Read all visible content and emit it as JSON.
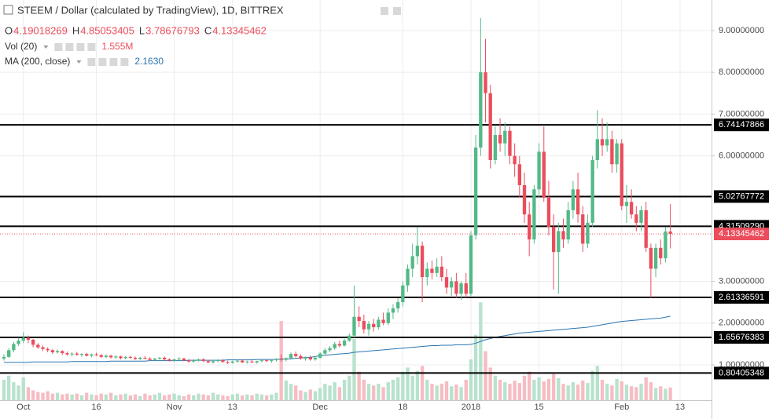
{
  "chart_data": {
    "type": "candlestick",
    "title": "STEEM / Dollar (calculated by TradingView), 1D, BITTREX",
    "ohlc_keys": [
      "O",
      "H",
      "L",
      "C"
    ],
    "indicators": [
      {
        "name": "Vol (20)",
        "value_label": "1.555M"
      },
      {
        "name": "MA (200, close)",
        "value_label": "2.1630"
      }
    ],
    "up_color": "#53b987",
    "down_color": "#eb4d5c",
    "ma_color": "#2a74b0",
    "volume_up_color": "#b7e2cd",
    "volume_down_color": "#f7bcc2",
    "ylim": [
      0.155,
      9.73
    ],
    "volume_lim": [
      0,
      12.5
    ],
    "grid": true,
    "yticks": [
      {
        "value": 1,
        "label": "1.00000000"
      },
      {
        "value": 2,
        "label": "2.00000000"
      },
      {
        "value": 3,
        "label": "3.00000000"
      },
      {
        "value": 6,
        "label": "6.00000000"
      },
      {
        "value": 7,
        "label": "7.00000000"
      },
      {
        "value": 8,
        "label": "8.00000000"
      },
      {
        "value": 9,
        "label": "9.00000000"
      }
    ],
    "hlines": [
      6.74147866,
      5.02767772,
      {
        "value": 4.3150929,
        "label": "4.31509290"
      },
      2.61336591,
      1.65676383,
      0.80405348
    ],
    "categories": [
      null,
      null,
      null,
      null,
      "Oct",
      null,
      null,
      null,
      null,
      null,
      null,
      null,
      null,
      null,
      null,
      null,
      null,
      null,
      null,
      "16",
      null,
      null,
      null,
      null,
      null,
      null,
      null,
      null,
      null,
      null,
      null,
      null,
      null,
      null,
      null,
      "Nov",
      null,
      null,
      null,
      null,
      null,
      null,
      null,
      null,
      null,
      null,
      null,
      "13",
      null,
      null,
      null,
      null,
      null,
      null,
      null,
      null,
      null,
      null,
      null,
      null,
      null,
      null,
      null,
      null,
      null,
      "Dec",
      null,
      null,
      null,
      null,
      null,
      null,
      null,
      null,
      null,
      null,
      null,
      null,
      null,
      null,
      null,
      null,
      "18",
      null,
      null,
      null,
      null,
      null,
      null,
      null,
      null,
      null,
      null,
      null,
      null,
      null,
      "2018",
      null,
      null,
      null,
      null,
      null,
      null,
      null,
      null,
      null,
      null,
      null,
      null,
      null,
      "15",
      null,
      null,
      null,
      null,
      null,
      null,
      null,
      null,
      null,
      null,
      null,
      null,
      null,
      null,
      null,
      null,
      "Feb",
      null,
      null,
      null,
      null,
      null,
      null,
      null,
      null,
      null,
      null,
      null,
      "13"
    ],
    "ohlc": [
      [
        1.15,
        1.25,
        1.1,
        1.19
      ],
      [
        1.19,
        1.4,
        1.17,
        1.35
      ],
      [
        1.35,
        1.55,
        1.3,
        1.5
      ],
      [
        1.5,
        1.65,
        1.45,
        1.58
      ],
      [
        1.58,
        1.78,
        1.52,
        1.65
      ],
      [
        1.65,
        1.7,
        1.52,
        1.6
      ],
      [
        1.6,
        1.62,
        1.42,
        1.48
      ],
      [
        1.48,
        1.52,
        1.38,
        1.42
      ],
      [
        1.42,
        1.46,
        1.33,
        1.38
      ],
      [
        1.38,
        1.42,
        1.3,
        1.35
      ],
      [
        1.35,
        1.38,
        1.26,
        1.3
      ],
      [
        1.3,
        1.37,
        1.27,
        1.33
      ],
      [
        1.33,
        1.35,
        1.24,
        1.28
      ],
      [
        1.28,
        1.32,
        1.22,
        1.25
      ],
      [
        1.25,
        1.3,
        1.2,
        1.27
      ],
      [
        1.27,
        1.31,
        1.22,
        1.24
      ],
      [
        1.24,
        1.28,
        1.19,
        1.26
      ],
      [
        1.26,
        1.29,
        1.2,
        1.22
      ],
      [
        1.22,
        1.27,
        1.18,
        1.25
      ],
      [
        1.25,
        1.29,
        1.21,
        1.23
      ],
      [
        1.23,
        1.26,
        1.17,
        1.19
      ],
      [
        1.19,
        1.25,
        1.16,
        1.22
      ],
      [
        1.22,
        1.24,
        1.15,
        1.18
      ],
      [
        1.18,
        1.23,
        1.14,
        1.2
      ],
      [
        1.2,
        1.22,
        1.13,
        1.16
      ],
      [
        1.16,
        1.21,
        1.13,
        1.19
      ],
      [
        1.19,
        1.22,
        1.14,
        1.17
      ],
      [
        1.17,
        1.2,
        1.12,
        1.14
      ],
      [
        1.14,
        1.19,
        1.11,
        1.17
      ],
      [
        1.17,
        1.21,
        1.13,
        1.15
      ],
      [
        1.15,
        1.18,
        1.1,
        1.12
      ],
      [
        1.12,
        1.17,
        1.09,
        1.15
      ],
      [
        1.15,
        1.19,
        1.12,
        1.17
      ],
      [
        1.17,
        1.2,
        1.11,
        1.13
      ],
      [
        1.13,
        1.16,
        1.08,
        1.1
      ],
      [
        1.1,
        1.15,
        1.07,
        1.13
      ],
      [
        1.13,
        1.18,
        1.1,
        1.15
      ],
      [
        1.15,
        1.17,
        1.09,
        1.11
      ],
      [
        1.11,
        1.14,
        1.05,
        1.08
      ],
      [
        1.08,
        1.13,
        1.05,
        1.11
      ],
      [
        1.11,
        1.15,
        1.08,
        1.13
      ],
      [
        1.13,
        1.16,
        1.07,
        1.09
      ],
      [
        1.09,
        1.12,
        1.04,
        1.06
      ],
      [
        1.06,
        1.11,
        1.03,
        1.09
      ],
      [
        1.09,
        1.13,
        1.06,
        1.11
      ],
      [
        1.11,
        1.14,
        1.05,
        1.07
      ],
      [
        1.07,
        1.1,
        1.02,
        1.05
      ],
      [
        1.05,
        1.1,
        1.03,
        1.08
      ],
      [
        1.08,
        1.12,
        1.05,
        1.1
      ],
      [
        1.1,
        1.13,
        1.04,
        1.06
      ],
      [
        1.06,
        1.1,
        1.03,
        1.08
      ],
      [
        1.08,
        1.11,
        1.04,
        1.06
      ],
      [
        1.06,
        1.1,
        1.03,
        1.09
      ],
      [
        1.09,
        1.13,
        1.06,
        1.11
      ],
      [
        1.11,
        1.14,
        1.07,
        1.09
      ],
      [
        1.09,
        1.13,
        1.05,
        1.11
      ],
      [
        1.11,
        1.16,
        1.08,
        1.14
      ],
      [
        1.14,
        1.25,
        1.08,
        1.12
      ],
      [
        1.12,
        1.18,
        1.08,
        1.16
      ],
      [
        1.16,
        1.3,
        1.14,
        1.26
      ],
      [
        1.26,
        1.32,
        1.18,
        1.21
      ],
      [
        1.21,
        1.25,
        1.12,
        1.15
      ],
      [
        1.15,
        1.2,
        1.1,
        1.18
      ],
      [
        1.18,
        1.22,
        1.1,
        1.13
      ],
      [
        1.13,
        1.2,
        1.1,
        1.17
      ],
      [
        1.17,
        1.3,
        1.15,
        1.27
      ],
      [
        1.27,
        1.4,
        1.24,
        1.35
      ],
      [
        1.35,
        1.45,
        1.3,
        1.4
      ],
      [
        1.4,
        1.55,
        1.36,
        1.5
      ],
      [
        1.5,
        1.58,
        1.42,
        1.46
      ],
      [
        1.46,
        1.62,
        1.44,
        1.58
      ],
      [
        1.58,
        1.75,
        1.55,
        1.7
      ],
      [
        1.7,
        2.9,
        1.65,
        2.15
      ],
      [
        2.15,
        2.4,
        1.9,
        2.05
      ],
      [
        2.05,
        2.2,
        1.75,
        1.85
      ],
      [
        1.85,
        2.05,
        1.7,
        1.98
      ],
      [
        1.98,
        2.1,
        1.8,
        1.9
      ],
      [
        1.9,
        2.15,
        1.85,
        2.08
      ],
      [
        2.08,
        2.25,
        1.95,
        2.0
      ],
      [
        2.0,
        2.35,
        1.95,
        2.25
      ],
      [
        2.25,
        2.45,
        2.1,
        2.35
      ],
      [
        2.35,
        2.6,
        2.25,
        2.5
      ],
      [
        2.5,
        3.0,
        2.4,
        2.9
      ],
      [
        2.9,
        3.4,
        2.75,
        3.3
      ],
      [
        3.3,
        3.9,
        3.1,
        3.6
      ],
      [
        3.6,
        4.3,
        3.4,
        3.85
      ],
      [
        3.85,
        3.95,
        2.5,
        3.1
      ],
      [
        3.1,
        3.45,
        2.9,
        3.3
      ],
      [
        3.3,
        3.5,
        3.05,
        3.2
      ],
      [
        3.2,
        3.55,
        3.1,
        3.35
      ],
      [
        3.35,
        3.6,
        3.0,
        3.1
      ],
      [
        3.1,
        3.3,
        2.7,
        2.85
      ],
      [
        2.85,
        3.1,
        2.65,
        3.0
      ],
      [
        3.0,
        3.2,
        2.6,
        2.7
      ],
      [
        2.7,
        3.0,
        2.55,
        2.95
      ],
      [
        2.95,
        3.2,
        2.6,
        2.7
      ],
      [
        2.7,
        4.2,
        2.65,
        4.1
      ],
      [
        4.1,
        6.5,
        4.0,
        6.2
      ],
      [
        6.2,
        9.3,
        6.0,
        8.0
      ],
      [
        8.0,
        8.8,
        6.8,
        7.5
      ],
      [
        7.5,
        7.7,
        5.7,
        5.9
      ],
      [
        5.9,
        6.7,
        5.8,
        6.5
      ],
      [
        6.5,
        6.9,
        6.1,
        6.3
      ],
      [
        6.3,
        6.8,
        6.0,
        6.6
      ],
      [
        6.6,
        6.7,
        5.8,
        6.0
      ],
      [
        6.0,
        6.3,
        5.5,
        5.8
      ],
      [
        5.8,
        6.0,
        5.0,
        5.3
      ],
      [
        5.3,
        5.6,
        4.4,
        4.6
      ],
      [
        4.6,
        4.9,
        3.6,
        4.0
      ],
      [
        4.0,
        5.3,
        3.9,
        5.2
      ],
      [
        5.2,
        6.3,
        5.0,
        6.1
      ],
      [
        6.1,
        6.7,
        4.9,
        5.0
      ],
      [
        5.0,
        5.4,
        4.1,
        4.3
      ],
      [
        4.3,
        4.6,
        2.8,
        3.7
      ],
      [
        3.7,
        4.4,
        2.7,
        4.2
      ],
      [
        4.2,
        4.5,
        3.8,
        4.0
      ],
      [
        4.0,
        4.9,
        3.9,
        4.7
      ],
      [
        4.7,
        5.4,
        4.5,
        5.2
      ],
      [
        5.2,
        5.6,
        4.4,
        4.6
      ],
      [
        4.6,
        4.8,
        3.7,
        3.9
      ],
      [
        3.9,
        4.6,
        3.8,
        4.4
      ],
      [
        4.4,
        6.0,
        4.3,
        5.9
      ],
      [
        5.9,
        7.1,
        5.7,
        6.4
      ],
      [
        6.4,
        6.9,
        6.0,
        6.25
      ],
      [
        6.25,
        6.8,
        6.1,
        6.4
      ],
      [
        6.4,
        6.6,
        5.6,
        5.8
      ],
      [
        5.8,
        6.4,
        5.6,
        6.3
      ],
      [
        6.3,
        6.4,
        4.7,
        4.8
      ],
      [
        4.8,
        5.3,
        4.4,
        4.9
      ],
      [
        4.9,
        5.2,
        4.5,
        4.6
      ],
      [
        4.6,
        4.8,
        4.2,
        4.4
      ],
      [
        4.4,
        4.8,
        4.2,
        4.7
      ],
      [
        4.7,
        4.9,
        3.7,
        3.8
      ],
      [
        3.8,
        3.9,
        2.6,
        3.3
      ],
      [
        3.3,
        3.9,
        3.1,
        3.8
      ],
      [
        3.8,
        4.0,
        3.4,
        3.55
      ],
      [
        3.55,
        4.3,
        3.45,
        4.19
      ],
      [
        4.19018269,
        4.85053405,
        3.78676793,
        4.13345462
      ],
      null,
      null
    ],
    "volume": [
      2.5,
      3.0,
      2.2,
      1.8,
      2.8,
      1.6,
      1.2,
      1.0,
      0.9,
      1.1,
      0.8,
      0.9,
      0.7,
      0.8,
      0.7,
      0.8,
      0.6,
      0.9,
      0.7,
      0.6,
      0.8,
      0.7,
      0.9,
      0.6,
      0.7,
      0.8,
      0.6,
      0.7,
      0.5,
      0.8,
      0.6,
      0.7,
      0.9,
      0.6,
      0.7,
      0.8,
      0.6,
      0.5,
      0.7,
      0.6,
      0.8,
      0.7,
      0.6,
      0.9,
      0.7,
      0.6,
      0.5,
      0.7,
      0.8,
      0.6,
      0.7,
      0.6,
      0.8,
      0.7,
      0.6,
      0.7,
      0.9,
      9.7,
      2.4,
      2.0,
      1.8,
      1.2,
      1.0,
      1.3,
      1.1,
      1.5,
      2.0,
      1.8,
      2.2,
      1.6,
      2.5,
      3.0,
      7.5,
      3.5,
      2.5,
      2.0,
      1.8,
      2.0,
      1.6,
      2.2,
      2.5,
      2.8,
      3.5,
      4.0,
      3.0,
      3.6,
      4.2,
      2.5,
      2.0,
      1.8,
      2.0,
      2.3,
      1.7,
      1.9,
      1.6,
      2.5,
      5.0,
      8.0,
      12.0,
      6.0,
      4.0,
      3.0,
      2.5,
      2.2,
      2.0,
      2.4,
      2.1,
      3.0,
      3.5,
      2.5,
      2.8,
      2.3,
      2.6,
      3.2,
      2.7,
      2.0,
      1.8,
      2.2,
      1.9,
      2.4,
      2.1,
      3.6,
      4.2,
      2.5,
      2.0,
      1.8,
      2.6,
      2.3,
      1.9,
      1.7,
      1.6,
      2.0,
      2.8,
      2.2,
      1.5,
      1.7,
      1.4,
      1.555,
      null,
      null
    ],
    "ma": [
      1.06,
      1.06,
      1.06,
      1.06,
      1.06,
      1.06,
      1.07,
      1.07,
      1.07,
      1.07,
      1.07,
      1.07,
      1.07,
      1.07,
      1.08,
      1.08,
      1.08,
      1.08,
      1.08,
      1.08,
      1.08,
      1.08,
      1.09,
      1.09,
      1.09,
      1.09,
      1.09,
      1.09,
      1.09,
      1.09,
      1.1,
      1.1,
      1.1,
      1.1,
      1.1,
      1.1,
      1.1,
      1.1,
      1.11,
      1.11,
      1.11,
      1.11,
      1.11,
      1.11,
      1.11,
      1.11,
      1.12,
      1.12,
      1.12,
      1.12,
      1.12,
      1.12,
      1.13,
      1.13,
      1.13,
      1.13,
      1.13,
      1.14,
      1.14,
      1.14,
      1.16,
      1.16,
      1.18,
      1.18,
      1.2,
      1.22,
      1.23,
      1.24,
      1.25,
      1.26,
      1.27,
      1.28,
      1.3,
      1.31,
      1.32,
      1.33,
      1.34,
      1.35,
      1.36,
      1.37,
      1.38,
      1.39,
      1.4,
      1.41,
      1.42,
      1.43,
      1.44,
      1.45,
      1.46,
      1.46,
      1.47,
      1.47,
      1.47,
      1.48,
      1.48,
      1.48,
      1.49,
      1.52,
      1.56,
      1.6,
      1.63,
      1.66,
      1.68,
      1.7,
      1.72,
      1.74,
      1.76,
      1.77,
      1.78,
      1.79,
      1.8,
      1.81,
      1.82,
      1.83,
      1.84,
      1.85,
      1.86,
      1.87,
      1.88,
      1.89,
      1.9,
      1.92,
      1.94,
      1.96,
      1.98,
      2.0,
      2.02,
      2.04,
      2.05,
      2.06,
      2.07,
      2.08,
      2.09,
      2.1,
      2.11,
      2.12,
      2.14,
      2.163,
      null,
      null
    ]
  }
}
